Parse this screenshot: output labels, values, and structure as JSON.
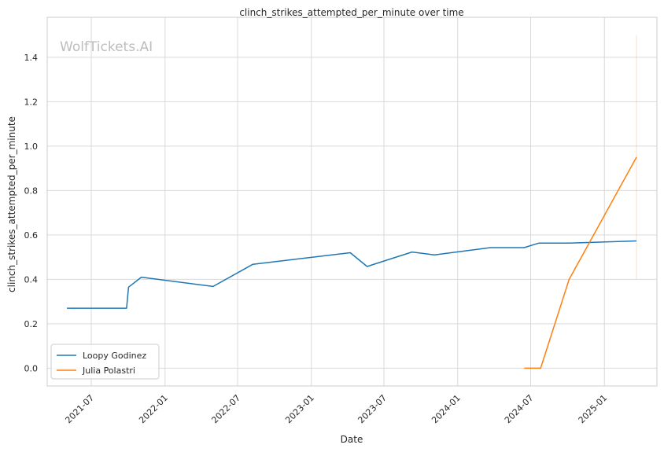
{
  "watermark": "WolfTickets.AI",
  "chart_data": {
    "type": "line",
    "title": "clinch_strikes_attempted_per_minute over time",
    "xlabel": "Date",
    "ylabel": "clinch_strikes_attempted_per_minute",
    "x_ticks": [
      "2021-07",
      "2022-01",
      "2022-07",
      "2023-01",
      "2023-07",
      "2024-01",
      "2024-07",
      "2025-01"
    ],
    "y_ticks": [
      "0.0",
      "0.2",
      "0.4",
      "0.6",
      "0.8",
      "1.0",
      "1.2",
      "1.4"
    ],
    "xlim": [
      "2021-03-13",
      "2025-05-12"
    ],
    "ylim": [
      -0.08,
      1.58
    ],
    "grid": true,
    "legend_position": "lower-left",
    "series": [
      {
        "name": "Loopy Godinez",
        "color": "#1f77b4",
        "points": [
          {
            "x": "2021-05-01",
            "y": 0.27
          },
          {
            "x": "2021-09-27",
            "y": 0.27
          },
          {
            "x": "2021-10-02",
            "y": 0.365
          },
          {
            "x": "2021-11-03",
            "y": 0.41
          },
          {
            "x": "2022-05-01",
            "y": 0.368
          },
          {
            "x": "2022-08-08",
            "y": 0.468
          },
          {
            "x": "2023-04-08",
            "y": 0.52
          },
          {
            "x": "2023-05-20",
            "y": 0.458
          },
          {
            "x": "2023-09-09",
            "y": 0.523
          },
          {
            "x": "2023-11-04",
            "y": 0.51
          },
          {
            "x": "2024-03-23",
            "y": 0.543
          },
          {
            "x": "2024-06-15",
            "y": 0.543
          },
          {
            "x": "2024-07-21",
            "y": 0.563
          },
          {
            "x": "2024-10-05",
            "y": 0.563
          },
          {
            "x": "2025-03-22",
            "y": 0.573
          }
        ]
      },
      {
        "name": "Julia Polastri",
        "color": "#ff7f0e",
        "points": [
          {
            "x": "2024-06-15",
            "y": 0.0
          },
          {
            "x": "2024-07-26",
            "y": 0.0
          },
          {
            "x": "2024-10-05",
            "y": 0.4
          },
          {
            "x": "2025-03-22",
            "y": 0.95
          }
        ]
      }
    ],
    "annotations": [
      {
        "type": "vertical-range",
        "series": "Julia Polastri",
        "x": "2025-03-22",
        "y_range": [
          0.4,
          1.5
        ]
      }
    ]
  }
}
